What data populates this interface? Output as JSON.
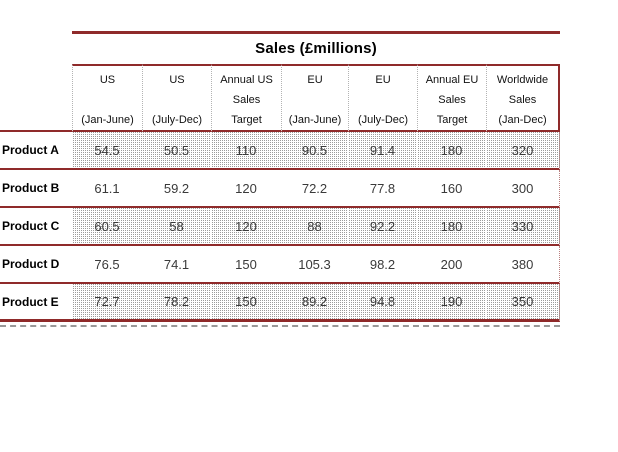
{
  "title": "Sales (£millions)",
  "colors": {
    "rule_red": "#8f2a2a",
    "shade_dot_gray": "#9b9b9b",
    "dashed_gray": "#999999"
  },
  "table": {
    "columns": [
      {
        "label": "US\n\n(Jan-June)"
      },
      {
        "label": "US\n\n(July-Dec)"
      },
      {
        "label": "Annual US\nSales\nTarget"
      },
      {
        "label": "EU\n\n(Jan-June)"
      },
      {
        "label": "EU\n\n(July-Dec)"
      },
      {
        "label": "Annual EU\nSales\nTarget"
      },
      {
        "label": "Worldwide\nSales\n(Jan-Dec)"
      }
    ],
    "rows": [
      {
        "label": "Product A",
        "values": [
          "54.5",
          "50.5",
          "110",
          "90.5",
          "91.4",
          "180",
          "320"
        ]
      },
      {
        "label": "Product B",
        "values": [
          "61.1",
          "59.2",
          "120",
          "72.2",
          "77.8",
          "160",
          "300"
        ]
      },
      {
        "label": "Product C",
        "values": [
          "60.5",
          "58",
          "120",
          "88",
          "92.2",
          "180",
          "330"
        ]
      },
      {
        "label": "Product D",
        "values": [
          "76.5",
          "74.1",
          "150",
          "105.3",
          "98.2",
          "200",
          "380"
        ]
      },
      {
        "label": "Product E",
        "values": [
          "72.7",
          "78.2",
          "150",
          "89.2",
          "94.8",
          "190",
          "350"
        ]
      }
    ]
  }
}
